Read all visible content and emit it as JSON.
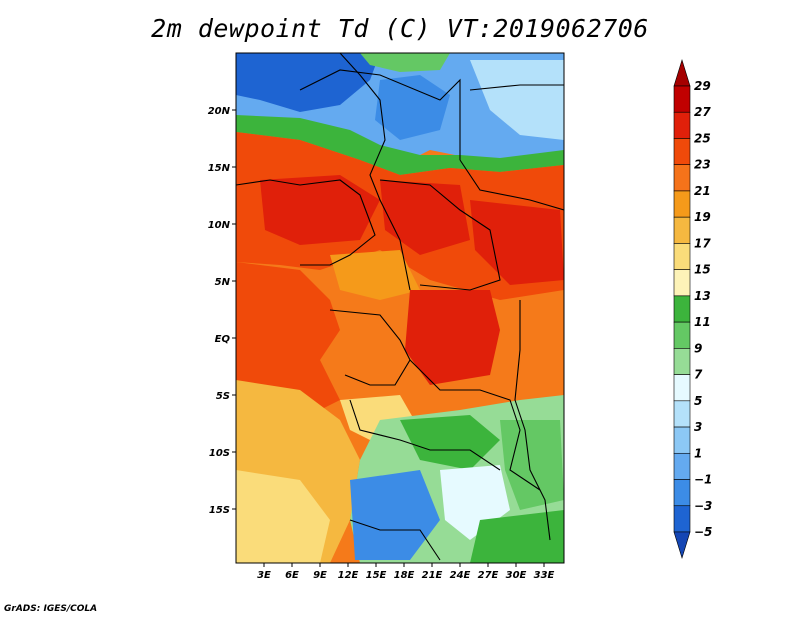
{
  "title": "2m dewpoint Td (C) VT:2019062706",
  "credit": "GrADS: IGES/COLA",
  "map": {
    "lat_labels": [
      "20N",
      "15N",
      "10N",
      "5N",
      "EQ",
      "5S",
      "10S",
      "15S"
    ],
    "lat_values": [
      20,
      15,
      10,
      5,
      0,
      -5,
      -10,
      -15
    ],
    "lon_labels": [
      "3E",
      "6E",
      "9E",
      "12E",
      "15E",
      "18E",
      "21E",
      "24E",
      "27E",
      "30E",
      "33E"
    ],
    "lon_values": [
      3,
      6,
      9,
      12,
      15,
      18,
      21,
      24,
      27,
      30,
      33
    ],
    "lon_range": [
      0,
      35
    ],
    "lat_range": [
      -20,
      25
    ]
  },
  "colorbar": {
    "levels": [
      "29",
      "27",
      "25",
      "23",
      "21",
      "19",
      "17",
      "15",
      "13",
      "11",
      "9",
      "7",
      "5",
      "3",
      "1",
      "−1",
      "−3",
      "−5"
    ],
    "colors": [
      "#a50000",
      "#c00000",
      "#e0200a",
      "#f04a0a",
      "#f5731a",
      "#f59a1a",
      "#f5b840",
      "#fadc7a",
      "#fdf3b8",
      "#3cb43c",
      "#64c864",
      "#96dc96",
      "#e6faff",
      "#b4e1fa",
      "#8cc8f5",
      "#64aaf0",
      "#3c8ce6",
      "#1e64d2",
      "#1446b4"
    ]
  },
  "colors": {
    "hot": "#e0300a",
    "warm": "#f57a1a",
    "mild": "#f5b840",
    "cool_green": "#64c864",
    "cold_blue": "#3c8ce6"
  }
}
